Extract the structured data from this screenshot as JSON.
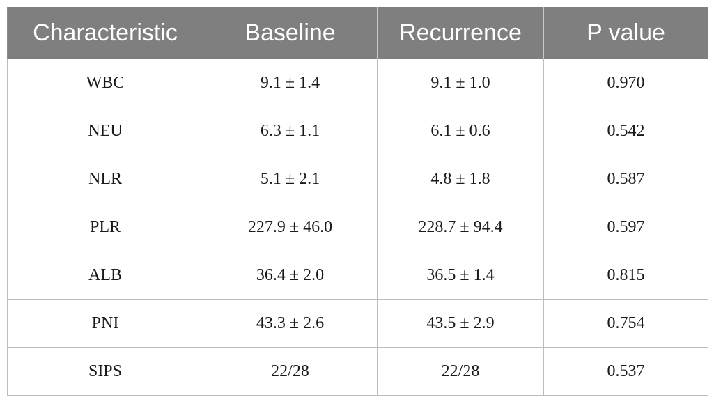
{
  "table": {
    "headers": [
      "Characteristic",
      "Baseline",
      "Recurrence",
      "P value"
    ],
    "rows": [
      [
        "WBC",
        "9.1 ± 1.4",
        "9.1 ± 1.0",
        "0.970"
      ],
      [
        "NEU",
        "6.3 ± 1.1",
        "6.1 ± 0.6",
        "0.542"
      ],
      [
        "NLR",
        "5.1 ± 2.1",
        "4.8 ± 1.8",
        "0.587"
      ],
      [
        "PLR",
        "227.9 ± 46.0",
        "228.7 ± 94.4",
        "0.597"
      ],
      [
        "ALB",
        "36.4 ± 2.0",
        "36.5 ± 1.4",
        "0.815"
      ],
      [
        "PNI",
        "43.3 ± 2.6",
        "43.5 ± 2.9",
        "0.754"
      ],
      [
        "SIPS",
        "22/28",
        "22/28",
        "0.537"
      ]
    ]
  },
  "colors": {
    "header_bg": "#7f7f7f",
    "header_text": "#ffffff",
    "grid": "#bdbdbd"
  }
}
